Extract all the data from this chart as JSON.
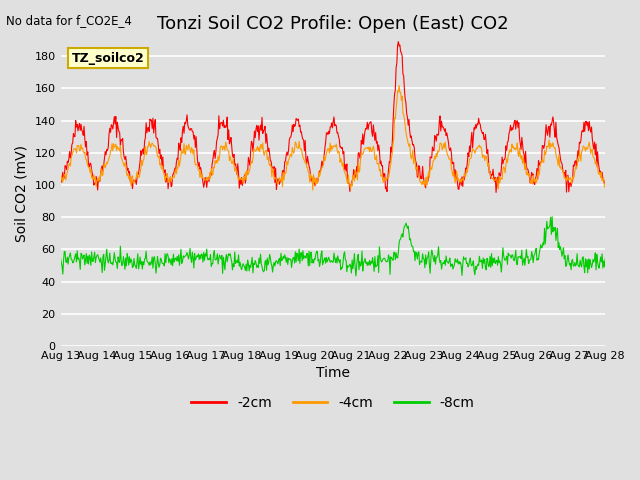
{
  "title": "Tonzi Soil CO2 Profile: Open (East) CO2",
  "top_left_text": "No data for f_CO2E_4",
  "xlabel": "Time",
  "ylabel": "Soil CO2 (mV)",
  "ylim": [
    0,
    190
  ],
  "yticks": [
    0,
    20,
    40,
    60,
    80,
    100,
    120,
    140,
    160,
    180
  ],
  "date_labels": [
    "Aug 13",
    "Aug 14",
    "Aug 15",
    "Aug 16",
    "Aug 17",
    "Aug 18",
    "Aug 19",
    "Aug 20",
    "Aug 21",
    "Aug 22",
    "Aug 23",
    "Aug 24",
    "Aug 25",
    "Aug 26",
    "Aug 27",
    "Aug 28"
  ],
  "legend_box_text": "TZ_soilco2",
  "legend_box_color": "#ffffcc",
  "legend_box_edge": "#ccaa00",
  "colors": {
    "red": "#ff0000",
    "orange": "#ff9900",
    "green": "#00cc00"
  },
  "legend_labels": [
    "-2cm",
    "-4cm",
    "-8cm"
  ],
  "background_color": "#e0e0e0",
  "title_fontsize": 13,
  "axis_label_fontsize": 10,
  "tick_fontsize": 8
}
